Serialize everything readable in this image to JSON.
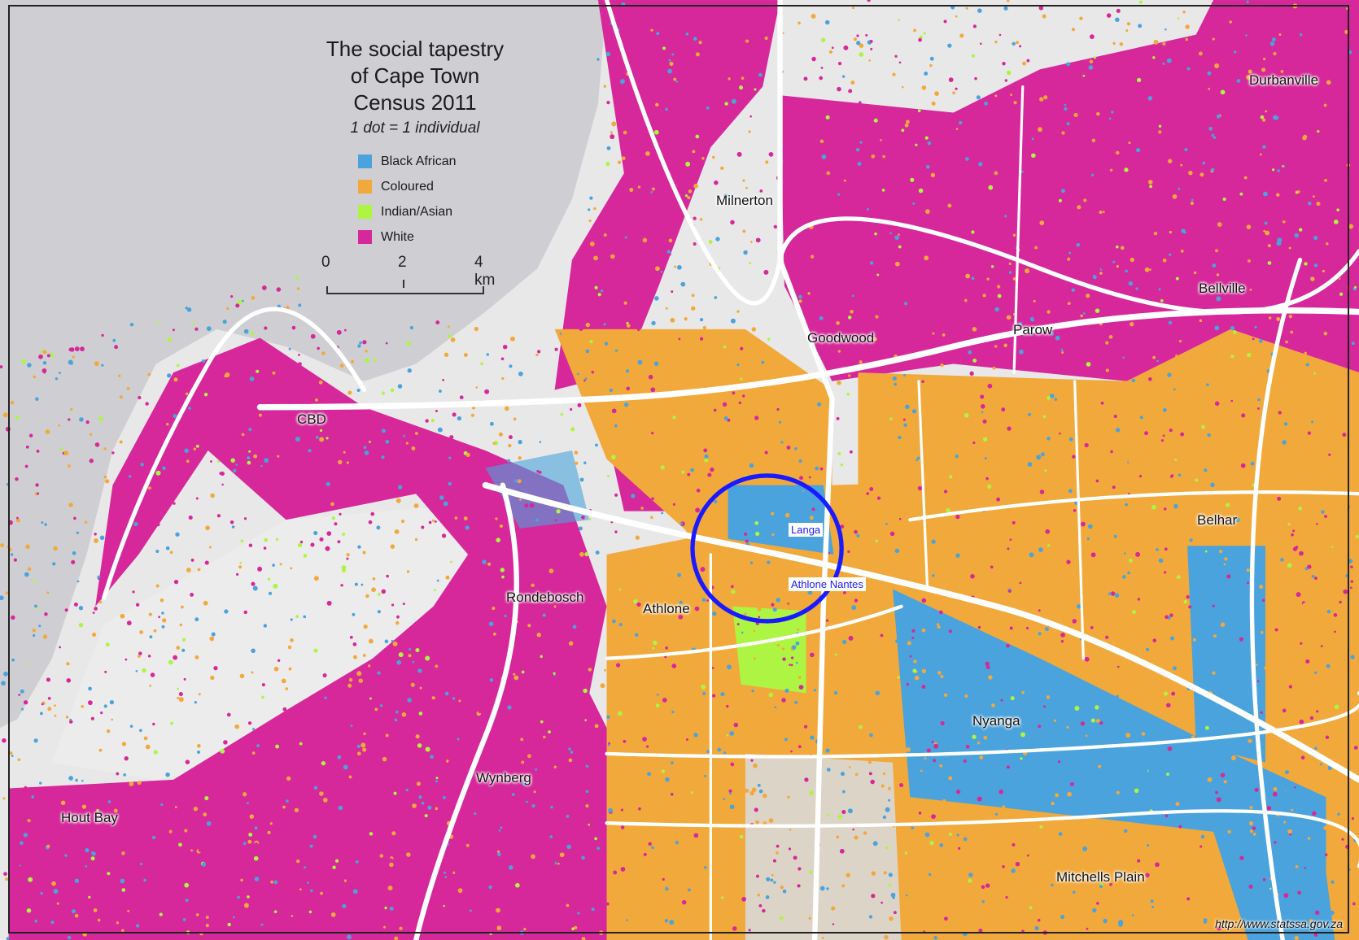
{
  "title_lines": [
    "The social tapestry",
    "of Cape Town",
    "Census 2011"
  ],
  "subtitle": "1 dot = 1 individual",
  "legend": [
    {
      "label": "Black African",
      "color": "#4aa3dc"
    },
    {
      "label": "Coloured",
      "color": "#f2a93b"
    },
    {
      "label": "Indian/Asian",
      "color": "#adf542"
    },
    {
      "label": "White",
      "color": "#d6289a"
    }
  ],
  "scale_bar": {
    "ticks": [
      "0",
      "2",
      "4 km"
    ]
  },
  "places": {
    "durbanville": "Durbanville",
    "milnerton": "Milnerton",
    "bellville": "Bellville",
    "goodwood": "Goodwood",
    "parow": "Parow",
    "cbd": "CBD",
    "belhar": "Belhar",
    "rondebosch": "Rondebosch",
    "athlone": "Athlone",
    "nyanga": "Nyanga",
    "wynberg": "Wynberg",
    "hout_bay": "Hout Bay",
    "mitchells_plain": "Mitchells Plain"
  },
  "annotations": {
    "langa": "Langa",
    "athlone_nantes": "Athlone Nantes",
    "circle_color": "#1a1aff"
  },
  "colors": {
    "sea": "#cfcfd3",
    "land": "#e8e8e8",
    "roads": "#ffffff"
  },
  "source": "http://www.statssa.gov.za"
}
